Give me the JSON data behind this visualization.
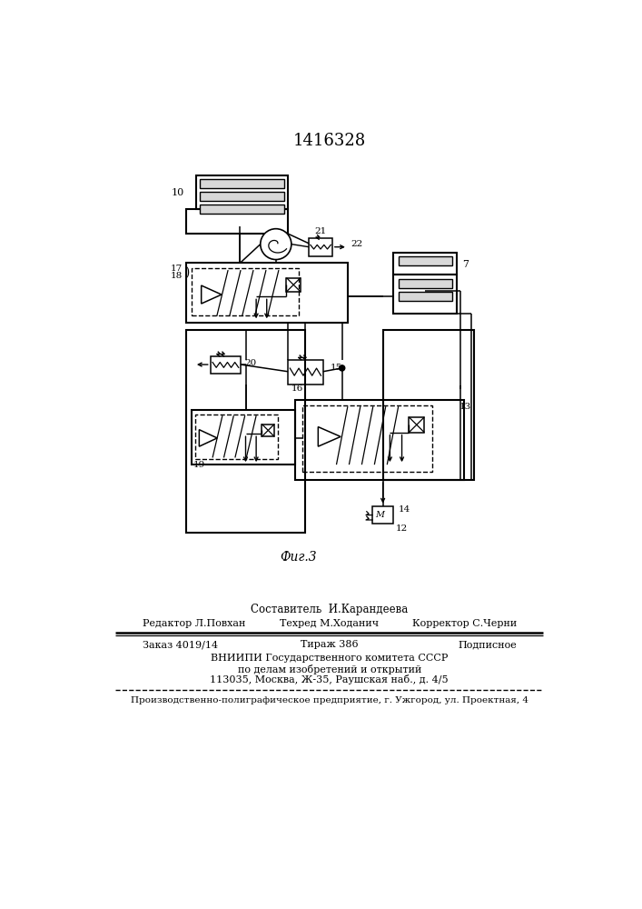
{
  "patent_number": "1416328",
  "fig_label": "Фиг.3",
  "top_text": "Составитель  И.Карандеева",
  "row1_left": "Редактор Л.Повхан",
  "row1_mid": "Техред М.Ходанич",
  "row1_right": "Корректор С.Черни",
  "row2_left": "Заказ 4019/14",
  "row2_mid": "Тираж 386",
  "row2_right": "Подписное",
  "vniip_line1": "ВНИИПИ Государственного комитета СССР",
  "vniip_line2": "по делам изобретений и открытий",
  "vniip_line3": "113035, Москва, Ж-35, Раушская наб., д. 4/5",
  "bottom_text": "Производственно-полиграфическое предприятие, г. Ужгород, ул. Проектная, 4",
  "bg_color": "#ffffff",
  "lc": "#1a1a1a"
}
